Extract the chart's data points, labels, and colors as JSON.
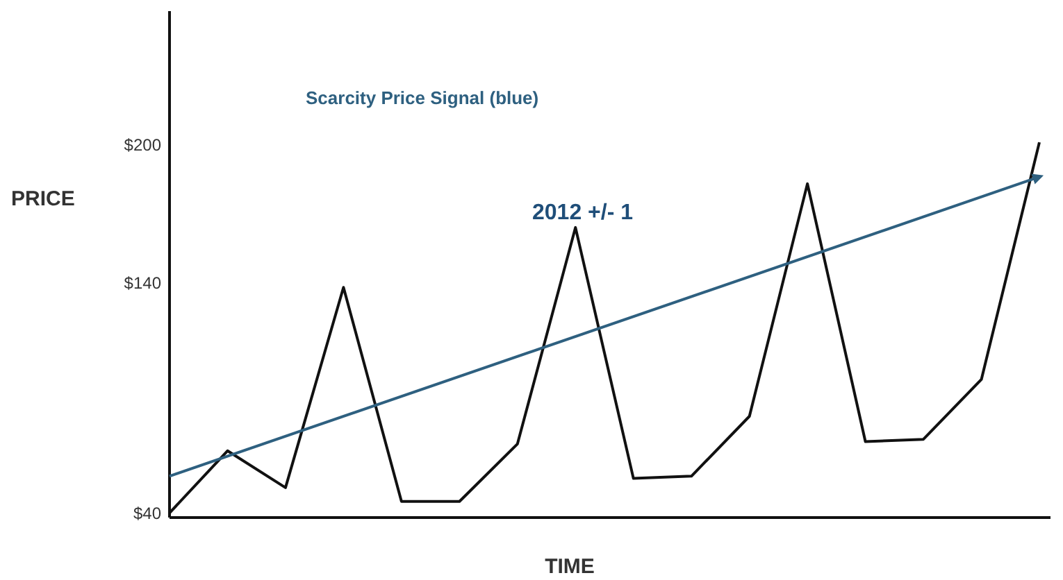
{
  "chart_data": {
    "type": "line",
    "xlabel": "TIME",
    "ylabel": "PRICE",
    "annotations": [
      "Scarcity Price Signal (blue)",
      "2012 +/- 1"
    ],
    "categories": [
      null,
      null,
      null,
      null,
      null,
      null,
      null,
      null,
      null,
      null,
      null,
      null,
      null,
      null,
      null,
      null
    ],
    "ylim": [
      38,
      258
    ],
    "yticks": [
      {
        "value": 40,
        "label": "$40"
      },
      {
        "value": 140,
        "label": "$140"
      },
      {
        "value": 200,
        "label": "$200"
      }
    ],
    "marker": "none",
    "series": [
      {
        "color": "#111111",
        "values": [
          40,
          67,
          51,
          138,
          45,
          45,
          70,
          164,
          55,
          56,
          82,
          183,
          71,
          72,
          98,
          201
        ]
      },
      {
        "color": "#2e6080",
        "values": [
          56,
          null,
          null,
          null,
          null,
          null,
          null,
          null,
          null,
          null,
          null,
          null,
          null,
          null,
          null,
          186
        ]
      }
    ]
  }
}
